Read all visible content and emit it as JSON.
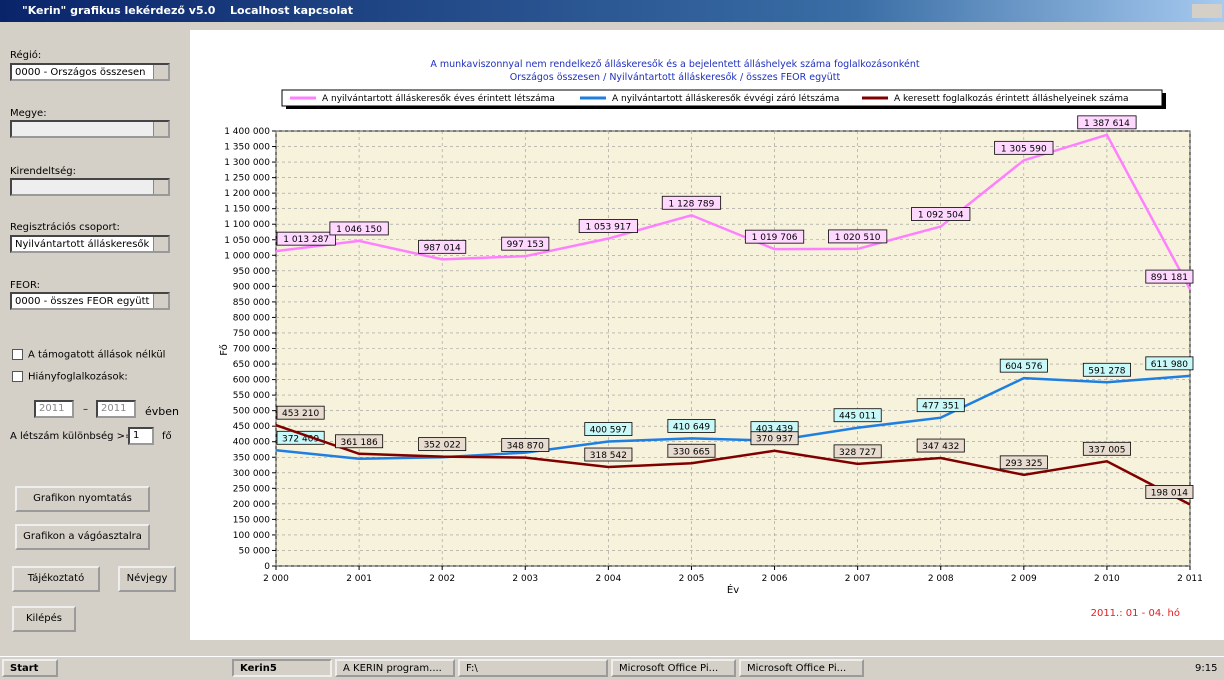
{
  "window": {
    "title": "\"Kerin\" grafikus lekérdező  v5.0",
    "connection": "Localhost kapcsolat"
  },
  "sidebar": {
    "region_label": "Régió:",
    "region_value": "0000 - Országos összesen",
    "county_label": "Megye:",
    "office_label": "Kirendeltség:",
    "group_label": "Regisztrációs csoport:",
    "group_value": "Nyilvántartott álláskeresők",
    "feor_label": "FEOR:",
    "feor_value": "0000 - összes FEOR együtt",
    "check1": "A támogatott állások nélkül",
    "check2": "Hiányfoglalkozások:",
    "year_from": "2011",
    "dash": "–",
    "year_to": "2011",
    "year_suffix": "évben",
    "diff_label": "A létszám különbség >=",
    "diff_value": "1",
    "diff_unit": "fő",
    "btn_print": "Grafikon nyomtatás",
    "btn_clip": "Grafikon a vágóasztalra",
    "btn_info": "Tájékoztató",
    "btn_about": "Névjegy",
    "btn_exit": "Kilépés"
  },
  "chart_data": {
    "type": "line",
    "title": "A munkaviszonnyal nem rendelkező álláskeresők és a bejelentett álláshelyek száma foglalkozásonként",
    "subtitle": "Országos összesen / Nyilvántartott álláskeresők / összes FEOR együtt",
    "x_label": "Év",
    "y_label": "Fő",
    "annotation": "2011.: 01 - 04. hó",
    "grid": true,
    "x": [
      2000,
      2001,
      2002,
      2003,
      2004,
      2005,
      2006,
      2007,
      2008,
      2009,
      2010,
      2011
    ],
    "xlim": [
      2000,
      2011
    ],
    "xticks": [
      {
        "value": 2000,
        "label": "2 000"
      },
      {
        "value": 2001,
        "label": "2 001"
      },
      {
        "value": 2002,
        "label": "2 002"
      },
      {
        "value": 2003,
        "label": "2 003"
      },
      {
        "value": 2004,
        "label": "2 004"
      },
      {
        "value": 2005,
        "label": "2 005"
      },
      {
        "value": 2006,
        "label": "2 006"
      },
      {
        "value": 2007,
        "label": "2 007"
      },
      {
        "value": 2008,
        "label": "2 008"
      },
      {
        "value": 2009,
        "label": "2 009"
      },
      {
        "value": 2010,
        "label": "2 010"
      },
      {
        "value": 2011,
        "label": "2 011"
      }
    ],
    "ylim": [
      0,
      1400000
    ],
    "yticks": [
      0,
      {
        "value": 50000,
        "label": "50 000"
      },
      {
        "value": 100000,
        "label": "100 000"
      },
      {
        "value": 150000,
        "label": "150 000"
      },
      {
        "value": 200000,
        "label": "200 000"
      },
      {
        "value": 250000,
        "label": "250 000"
      },
      {
        "value": 300000,
        "label": "300 000"
      },
      {
        "value": 350000,
        "label": "350 000"
      },
      {
        "value": 400000,
        "label": "400 000"
      },
      {
        "value": 450000,
        "label": "450 000"
      },
      {
        "value": 500000,
        "label": "500 000"
      },
      {
        "value": 550000,
        "label": "550 000"
      },
      {
        "value": 600000,
        "label": "600 000"
      },
      {
        "value": 650000,
        "label": "650 000"
      },
      {
        "value": 700000,
        "label": "700 000"
      },
      {
        "value": 750000,
        "label": "750 000"
      },
      {
        "value": 800000,
        "label": "800 000"
      },
      {
        "value": 850000,
        "label": "850 000"
      },
      {
        "value": 900000,
        "label": "900 000"
      },
      {
        "value": 950000,
        "label": "950 000"
      },
      {
        "value": 1000000,
        "label": "1 000 000"
      },
      {
        "value": 1050000,
        "label": "1 050 000"
      },
      {
        "value": 1100000,
        "label": "1 100 000"
      },
      {
        "value": 1150000,
        "label": "1 150 000"
      },
      {
        "value": 1200000,
        "label": "1 200 000"
      },
      {
        "value": 1250000,
        "label": "1 250 000"
      },
      {
        "value": 1300000,
        "label": "1 300 000"
      },
      {
        "value": 1350000,
        "label": "1 350 000"
      },
      {
        "value": 1400000,
        "label": "1 400 000"
      }
    ],
    "series": [
      {
        "name": "A nyilvántartott álláskeresők éves érintett létszáma",
        "color": "#ff80ff",
        "label_bg": "#ffd8ff",
        "values": [
          1013287,
          1046150,
          987014,
          997153,
          1053917,
          1128789,
          1019706,
          1020510,
          1092504,
          1305590,
          1387614,
          891181
        ],
        "value_labels": [
          "1 013 287",
          "1 046 150",
          "987 014",
          "997 153",
          "1 053 917",
          "1 128 789",
          "1 019 706",
          "1 020 510",
          "1 092 504",
          "1 305 590",
          "1 387 614",
          "891 181"
        ]
      },
      {
        "name": "A nyilvántartott álláskeresők évvégi záró létszáma",
        "color": "#1e7fe0",
        "label_bg": "#c8f8f8",
        "values": [
          372409,
          345000,
          350000,
          365000,
          400597,
          410649,
          403439,
          445011,
          477351,
          604576,
          591278,
          611980
        ],
        "value_labels": [
          "372 409",
          null,
          null,
          null,
          "400 597",
          "410 649",
          "403 439",
          "445 011",
          "477 351",
          "604 576",
          "591 278",
          "611 980"
        ]
      },
      {
        "name": "A keresett foglalkozás érintett álláshelyeinek száma",
        "color": "#800000",
        "label_bg": "#e8dcd0",
        "values": [
          453210,
          361186,
          352022,
          348870,
          318542,
          330665,
          370937,
          328727,
          347432,
          293325,
          337005,
          198014
        ],
        "value_labels": [
          "453 210",
          "361 186",
          "352 022",
          "348 870",
          "318 542",
          "330 665",
          "370 937",
          "328 727",
          "347 432",
          "293 325",
          "337 005",
          "198 014"
        ]
      }
    ]
  },
  "taskbar": {
    "start": "Start",
    "app": "Kerin5",
    "task1": "A KERIN program....",
    "task2": "F:\\",
    "task3": "Microsoft Office Pi...",
    "task4": "Microsoft Office Pi...",
    "clock": "9:15"
  }
}
